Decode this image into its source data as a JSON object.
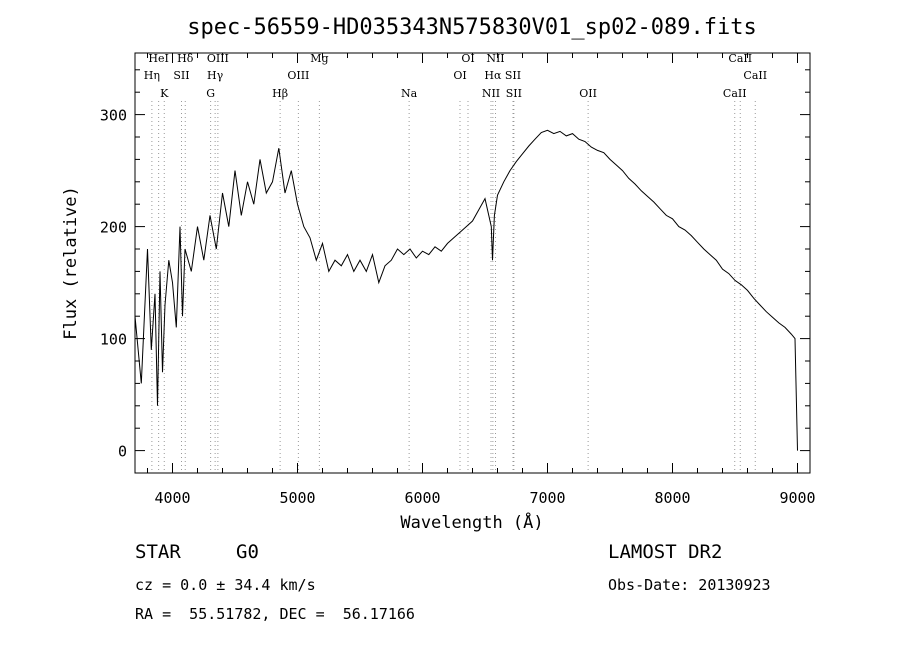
{
  "info": {
    "class": "STAR",
    "subclass": "G0",
    "survey": "LAMOST DR2",
    "cz": "cz = 0.0 ± 34.4 km/s",
    "obs_date": "Obs-Date: 20130923",
    "coords": "RA =  55.51782, DEC =  56.17166"
  },
  "chart_data": {
    "type": "line",
    "title": "spec-56559-HD035343N575830V01_sp02-089.fits",
    "xlabel": "Wavelength (Å)",
    "ylabel": "Flux (relative)",
    "xlim": [
      3700,
      9100
    ],
    "ylim": [
      -20,
      355
    ],
    "xticks": [
      4000,
      5000,
      6000,
      7000,
      8000,
      9000
    ],
    "yticks": [
      0,
      100,
      200,
      300
    ],
    "grid": false,
    "line_color": "#000000",
    "marker_color": "#999999",
    "series": [
      {
        "x": [
          3700,
          3750,
          3800,
          3830,
          3860,
          3880,
          3900,
          3920,
          3940,
          3970,
          4000,
          4030,
          4060,
          4080,
          4100,
          4150,
          4200,
          4250,
          4300,
          4350,
          4400,
          4450,
          4500,
          4550,
          4600,
          4650,
          4700,
          4750,
          4800,
          4850,
          4900,
          4950,
          5000,
          5050,
          5100,
          5150,
          5200,
          5250,
          5300,
          5350,
          5400,
          5450,
          5500,
          5550,
          5600,
          5650,
          5700,
          5750,
          5800,
          5850,
          5900,
          5950,
          6000,
          6050,
          6100,
          6150,
          6200,
          6250,
          6300,
          6350,
          6400,
          6450,
          6500,
          6550,
          6560,
          6575,
          6600,
          6650,
          6700,
          6750,
          6800,
          6850,
          6900,
          6950,
          7000,
          7050,
          7100,
          7150,
          7200,
          7250,
          7300,
          7350,
          7400,
          7450,
          7500,
          7550,
          7600,
          7650,
          7700,
          7750,
          7800,
          7850,
          7900,
          7950,
          8000,
          8050,
          8100,
          8150,
          8200,
          8250,
          8300,
          8350,
          8400,
          8450,
          8500,
          8550,
          8600,
          8650,
          8700,
          8750,
          8800,
          8850,
          8900,
          8950,
          8980,
          9000
        ],
        "y": [
          120,
          60,
          180,
          90,
          140,
          40,
          160,
          70,
          130,
          170,
          150,
          110,
          200,
          120,
          180,
          160,
          200,
          170,
          210,
          180,
          230,
          200,
          250,
          210,
          240,
          220,
          260,
          230,
          240,
          270,
          230,
          250,
          220,
          200,
          190,
          170,
          185,
          160,
          170,
          165,
          175,
          160,
          170,
          160,
          175,
          150,
          165,
          170,
          180,
          175,
          180,
          172,
          178,
          175,
          182,
          178,
          185,
          190,
          195,
          200,
          205,
          215,
          225,
          200,
          170,
          210,
          228,
          240,
          250,
          258,
          265,
          272,
          278,
          284,
          286,
          283,
          285,
          281,
          283,
          278,
          276,
          271,
          268,
          266,
          260,
          255,
          250,
          243,
          238,
          232,
          227,
          222,
          216,
          210,
          207,
          200,
          197,
          192,
          186,
          180,
          175,
          170,
          162,
          158,
          152,
          148,
          143,
          136,
          130,
          124,
          119,
          114,
          110,
          104,
          100,
          0
        ]
      }
    ],
    "lines": [
      {
        "name": "HeI",
        "x": 3889,
        "row": 0
      },
      {
        "name": "Hη",
        "x": 3835,
        "row": 1
      },
      {
        "name": "K",
        "x": 3934,
        "row": 2
      },
      {
        "name": "Hδ",
        "x": 4102,
        "row": 0
      },
      {
        "name": "SII",
        "x": 4072,
        "row": 1
      },
      {
        "name": "OIII",
        "x": 4363,
        "row": 0
      },
      {
        "name": "Hγ",
        "x": 4341,
        "row": 1
      },
      {
        "name": "G",
        "x": 4305,
        "row": 2
      },
      {
        "name": "Mg",
        "x": 5175,
        "row": 0
      },
      {
        "name": "OIII",
        "x": 5007,
        "row": 1
      },
      {
        "name": "Hβ",
        "x": 4861,
        "row": 2
      },
      {
        "name": "Na",
        "x": 5893,
        "row": 2
      },
      {
        "name": "OI",
        "x": 6364,
        "row": 0
      },
      {
        "name": "OI",
        "x": 6300,
        "row": 1
      },
      {
        "name": "NII",
        "x": 6584,
        "row": 0
      },
      {
        "name": "Hα",
        "x": 6563,
        "row": 1
      },
      {
        "name": "SII",
        "x": 6724,
        "row": 1
      },
      {
        "name": "NII",
        "x": 6548,
        "row": 2
      },
      {
        "name": "SII",
        "x": 6731,
        "row": 2
      },
      {
        "name": "OII",
        "x": 7325,
        "row": 2
      },
      {
        "name": "CaII",
        "x": 8542,
        "row": 0
      },
      {
        "name": "CaII",
        "x": 8662,
        "row": 1
      },
      {
        "name": "CaII",
        "x": 8498,
        "row": 2
      }
    ]
  }
}
